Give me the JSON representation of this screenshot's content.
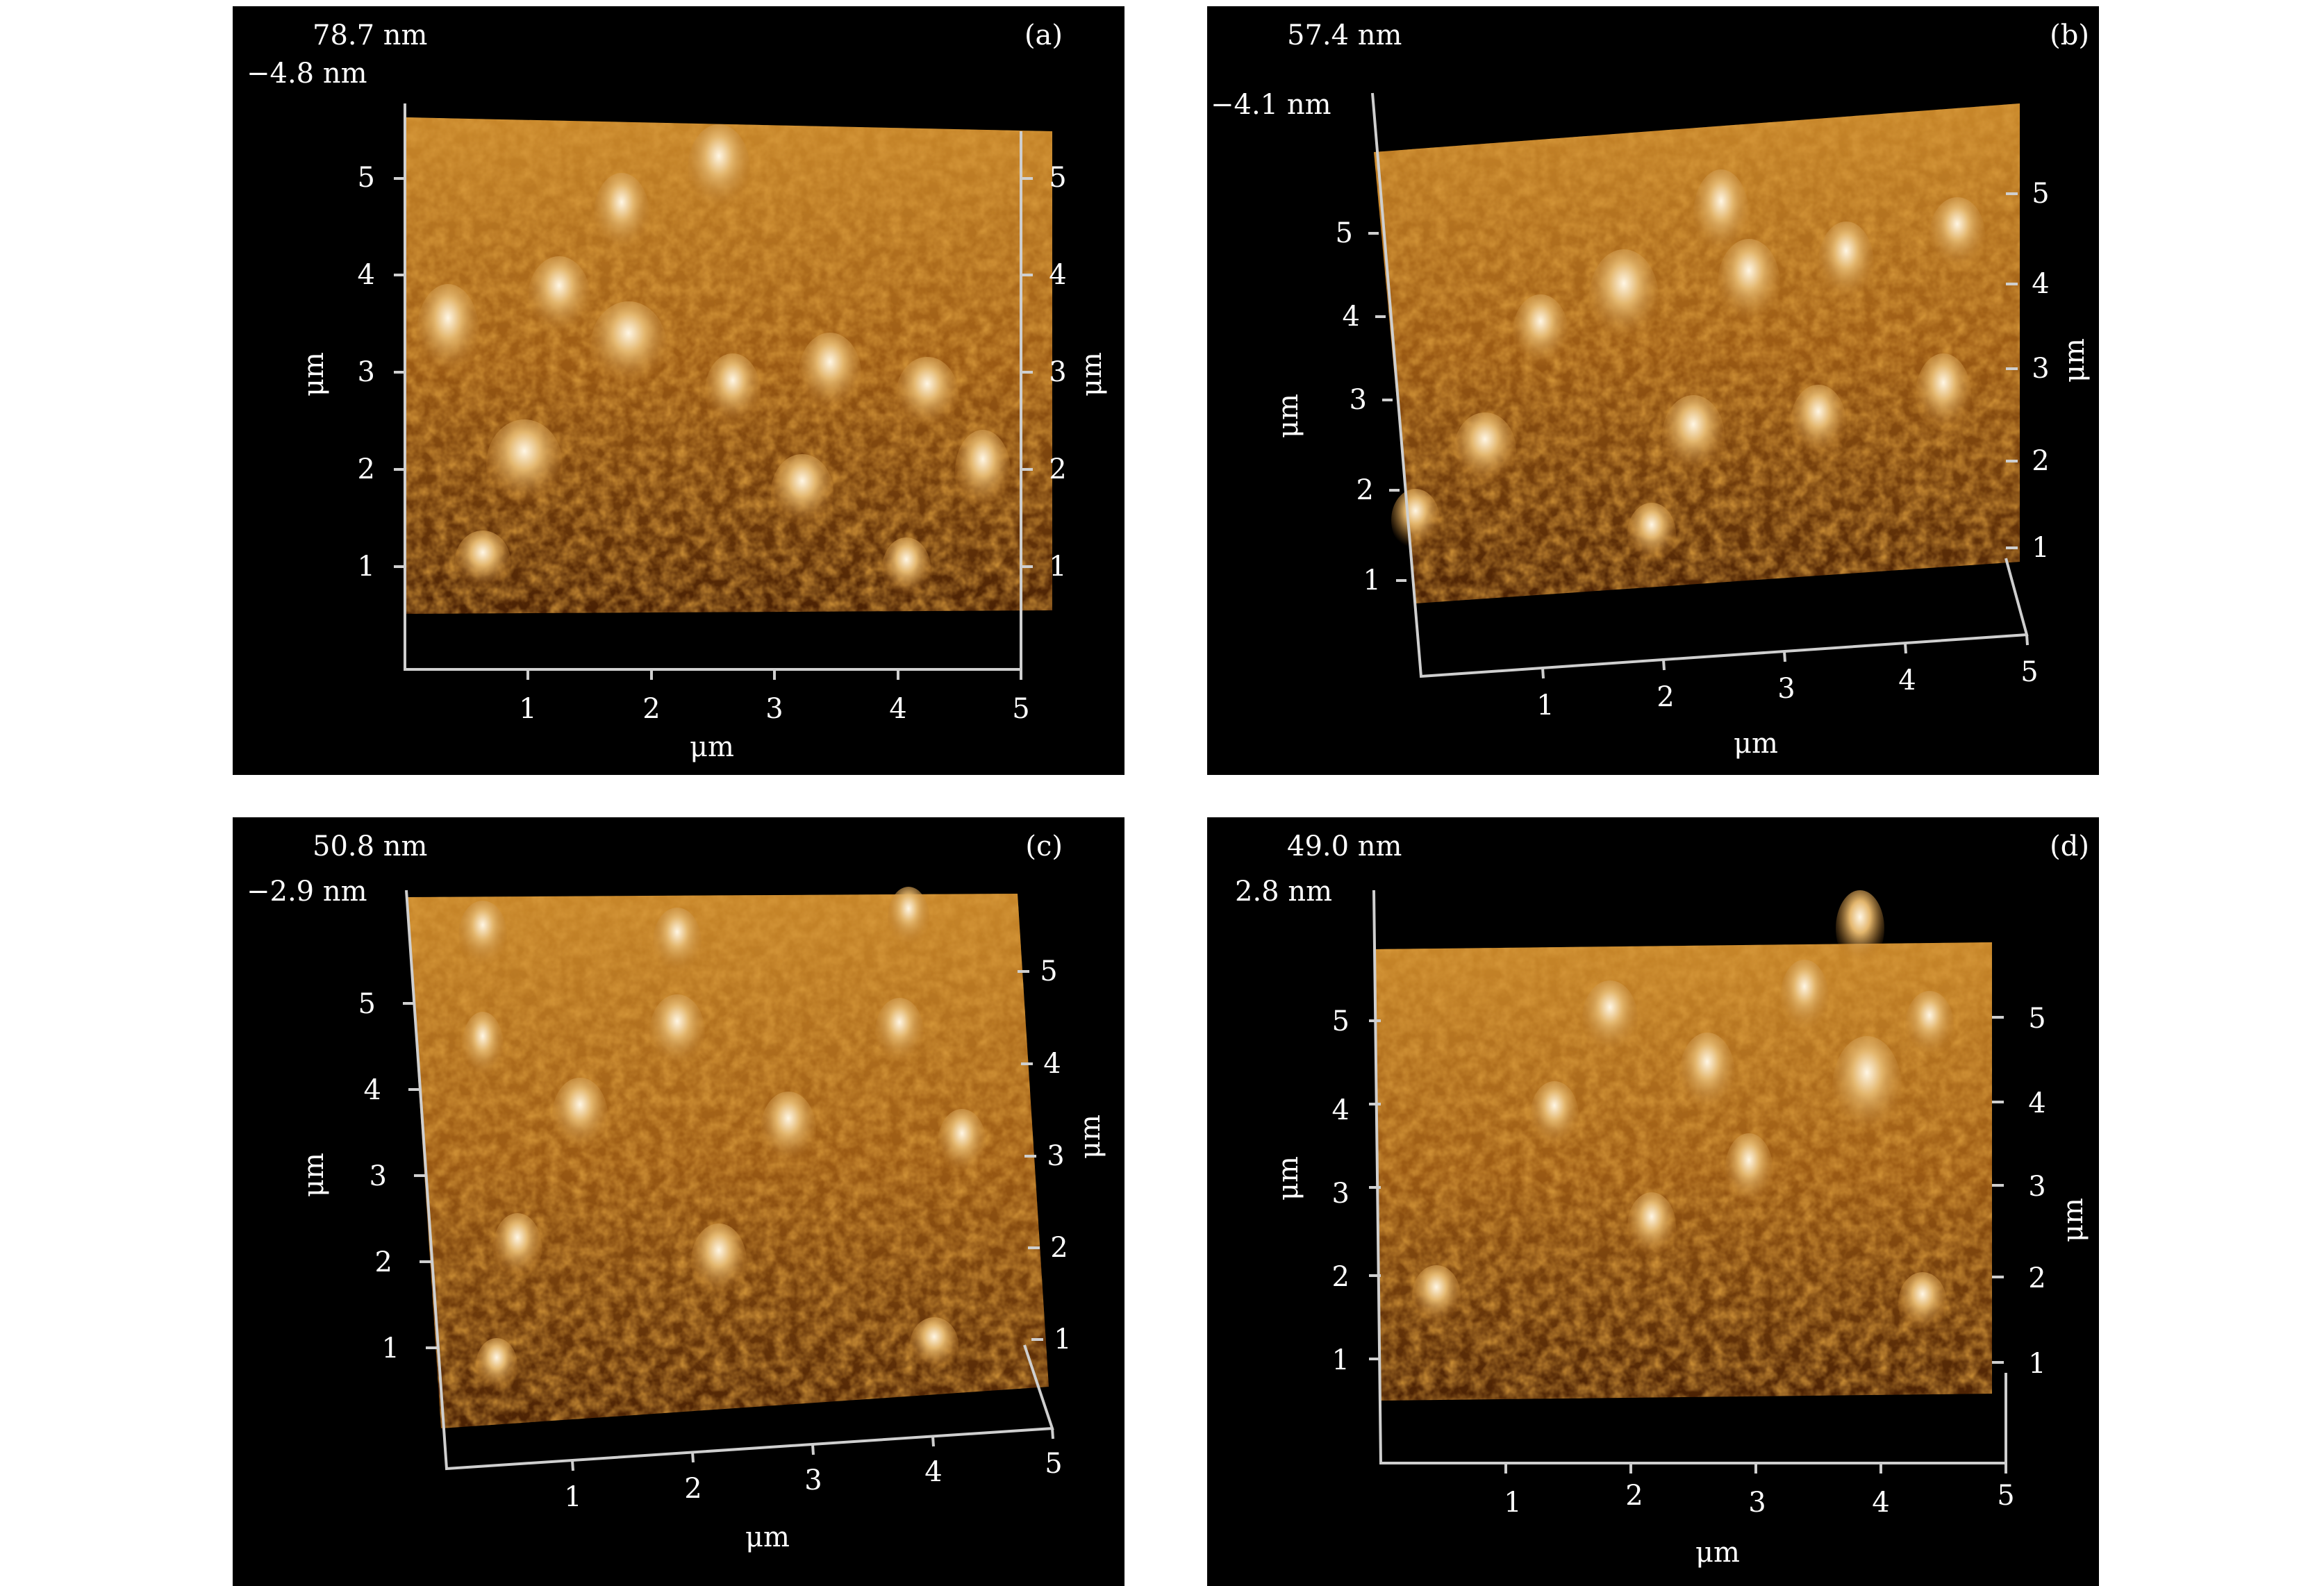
{
  "panels": [
    {
      "id": "a",
      "label": "(a)",
      "z_max": "78.7 nm",
      "z_min": "−4.8 nm",
      "x_ticks": [
        "1",
        "2",
        "3",
        "4",
        "5"
      ],
      "y_left_ticks": [
        "1",
        "2",
        "3",
        "4",
        "5"
      ],
      "y_right_ticks": [
        "1",
        "2",
        "3",
        "4",
        "5"
      ],
      "x_unit": "μm",
      "y_left_unit": "μm",
      "y_right_unit": "μm"
    },
    {
      "id": "b",
      "label": "(b)",
      "z_max": "57.4 nm",
      "z_min": "−4.1 nm",
      "x_ticks": [
        "1",
        "2",
        "3",
        "4",
        "5"
      ],
      "y_left_ticks": [
        "1",
        "2",
        "3",
        "4",
        "5"
      ],
      "y_right_ticks": [
        "1",
        "2",
        "3",
        "4",
        "5"
      ],
      "x_unit": "μm",
      "y_left_unit": "μm",
      "y_right_unit": "μm"
    },
    {
      "id": "c",
      "label": "(c)",
      "z_max": "50.8 nm",
      "z_min": "−2.9 nm",
      "x_ticks": [
        "1",
        "2",
        "3",
        "4",
        "5"
      ],
      "y_left_ticks": [
        "1",
        "2",
        "3",
        "4",
        "5"
      ],
      "y_right_ticks": [
        "1",
        "2",
        "3",
        "4",
        "5"
      ],
      "x_unit": "μm",
      "y_left_unit": "μm",
      "y_right_unit": "μm"
    },
    {
      "id": "d",
      "label": "(d)",
      "z_max": "49.0 nm",
      "z_min": "2.8 nm",
      "x_ticks": [
        "1",
        "2",
        "3",
        "4",
        "5"
      ],
      "y_left_ticks": [
        "1",
        "2",
        "3",
        "4",
        "5"
      ],
      "y_right_ticks": [
        "1",
        "2",
        "3",
        "4",
        "5"
      ],
      "x_unit": "μm",
      "y_left_unit": "μm",
      "y_right_unit": "μm"
    }
  ],
  "colors": {
    "panel_background": "#000000",
    "surface_dark": "#5a2a05",
    "surface_mid": "#b8741c",
    "surface_light": "#f6e6c8",
    "text": "#ffffff"
  }
}
